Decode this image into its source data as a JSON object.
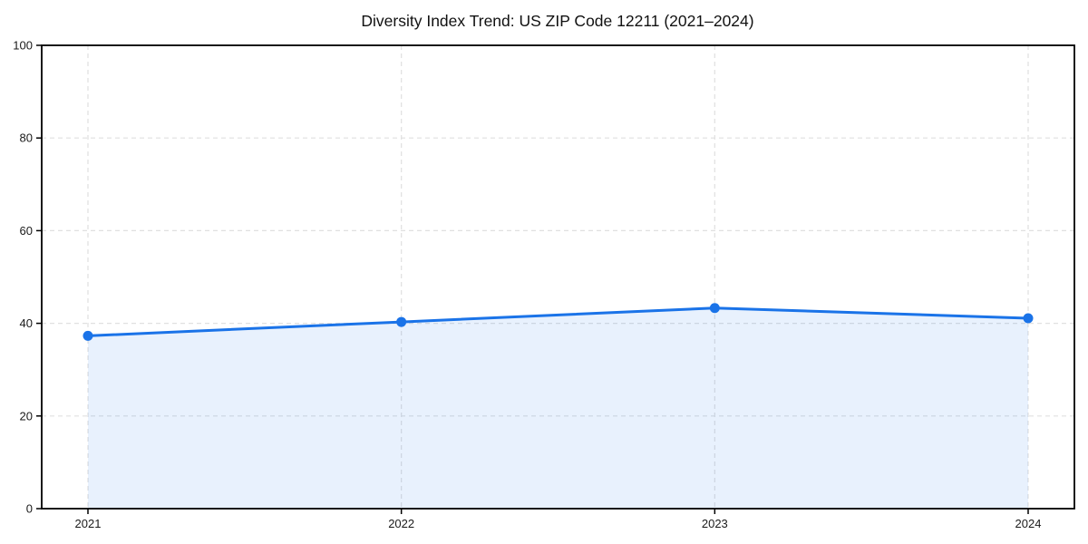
{
  "page": {
    "background": "#ffffff"
  },
  "chart_data": {
    "type": "area",
    "title": "Diversity Index Trend: US ZIP Code 12211 (2021–2024)",
    "series_name": "Diversity Index",
    "categories": [
      "2021",
      "2022",
      "2023",
      "2024"
    ],
    "values": [
      37.3,
      40.3,
      43.3,
      41.1
    ],
    "xlabel": "",
    "ylabel": "",
    "ylim": [
      0,
      100
    ],
    "yticks": [
      0,
      20,
      40,
      60,
      80,
      100
    ],
    "grid": "dashed",
    "legend_position": "none",
    "marker": "circle",
    "colors": {
      "line": "#1a73e8",
      "marker": "#1a73e8",
      "fill": "#1a73e8",
      "fill_opacity": 0.1,
      "gridline": "#e0e0e0",
      "axis": "#000000",
      "text": "#000000"
    }
  }
}
